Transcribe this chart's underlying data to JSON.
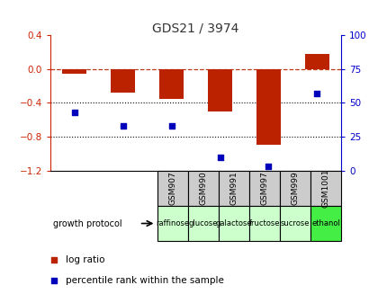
{
  "title": "GDS21 / 3974",
  "samples": [
    "GSM907",
    "GSM990",
    "GSM991",
    "GSM997",
    "GSM999",
    "GSM1001"
  ],
  "protocols": [
    "raffinose",
    "glucose",
    "galactose",
    "fructose",
    "sucrose",
    "ethanol"
  ],
  "log_ratio": [
    -0.05,
    -0.28,
    -0.35,
    -0.5,
    -0.9,
    0.18
  ],
  "percentile_rank": [
    43,
    33,
    33,
    10,
    3,
    57
  ],
  "ylim_left": [
    -1.2,
    0.4
  ],
  "ylim_right": [
    0,
    100
  ],
  "yticks_left": [
    -1.2,
    -0.8,
    -0.4,
    0.0,
    0.4
  ],
  "yticks_right": [
    0,
    25,
    50,
    75,
    100
  ],
  "bar_color": "#bb2200",
  "dot_color": "#0000bb",
  "hline_y": 0.0,
  "dotted_lines": [
    -0.4,
    -0.8
  ],
  "title_color": "#333333",
  "left_axis_color": "#cc2200",
  "right_axis_color": "#0000cc",
  "protocol_colors": [
    "#ccffcc",
    "#ccffcc",
    "#ccffcc",
    "#ccffcc",
    "#ccffcc",
    "#44ee44"
  ],
  "legend_label_bar": "log ratio",
  "legend_label_dot": "percentile rank within the sample",
  "growth_protocol_label": "growth protocol",
  "bar_width": 0.5
}
